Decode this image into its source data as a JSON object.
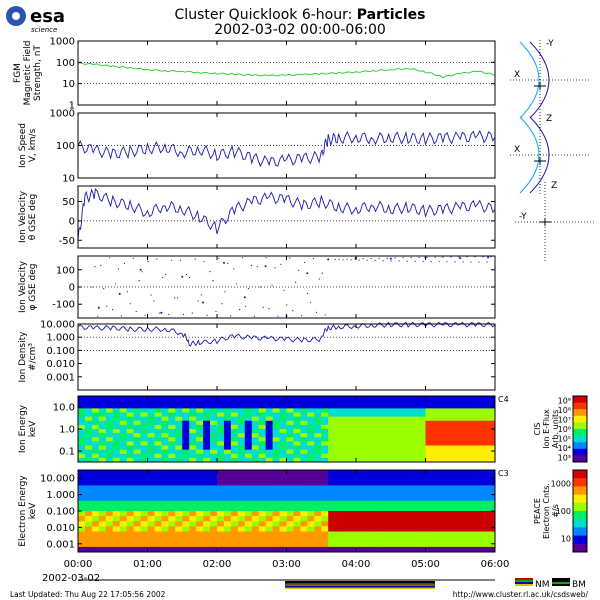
{
  "header": {
    "logo_text": "esa",
    "logo_sub": "science",
    "title_prefix": "Cluster Quicklook 6-hour: ",
    "title_bold": "Particles",
    "subtitle": "2002-03-02 00:00-06:00"
  },
  "footer": {
    "last_updated": "Last Updated:  Thu Aug 22 17:05:56 2002",
    "url": "http://www.cluster.rl.ac.uk/csdsweb/",
    "date": "2002-03-02",
    "nm_label": "NM",
    "bm_label": "BM"
  },
  "colors": {
    "fgm_line": "#22cc22",
    "ion_line": "#1a1aaa",
    "orbit_bow_shock": "#00aaff",
    "orbit_magnetopause": "#1a1aaa"
  },
  "chart_data": [
    {
      "type": "line",
      "panel": "fgm",
      "ylabel": [
        "FGM",
        "Magnetic  Field",
        "Strength, nT"
      ],
      "yscale": "log",
      "ylim": [
        1,
        1000
      ],
      "yticks": [
        "1000",
        "100",
        "10",
        "1"
      ],
      "x_hours": [
        0.0,
        0.25,
        0.5,
        0.75,
        1.0,
        1.25,
        1.5,
        1.75,
        2.0,
        2.25,
        2.5,
        2.75,
        3.0,
        3.25,
        3.5,
        3.75,
        4.0,
        4.25,
        4.5,
        4.75,
        5.0,
        5.25,
        5.5,
        5.75,
        6.0
      ],
      "values": [
        90,
        80,
        65,
        55,
        45,
        40,
        38,
        33,
        30,
        28,
        25,
        24,
        25,
        27,
        29,
        32,
        35,
        40,
        45,
        52,
        35,
        20,
        30,
        38,
        25
      ]
    },
    {
      "type": "line",
      "panel": "ion_speed",
      "ylabel": [
        "Ion Speed",
        "V, km/s"
      ],
      "yscale": "log",
      "ylim": [
        10,
        1000
      ],
      "yticks": [
        "1000",
        "100",
        "10"
      ],
      "x_hours": [
        0.0,
        0.25,
        0.5,
        0.75,
        1.0,
        1.25,
        1.5,
        1.75,
        2.0,
        2.25,
        2.5,
        2.75,
        3.0,
        3.25,
        3.5,
        3.6,
        3.75,
        4.0,
        4.25,
        4.5,
        4.75,
        5.0,
        5.25,
        5.5,
        5.75,
        6.0
      ],
      "values": [
        95,
        70,
        55,
        65,
        80,
        90,
        60,
        75,
        50,
        65,
        40,
        30,
        35,
        40,
        45,
        150,
        170,
        180,
        165,
        175,
        170,
        160,
        170,
        175,
        190,
        180
      ]
    },
    {
      "type": "line",
      "panel": "ion_theta",
      "ylabel": [
        "Ion Velocity",
        "θ GSE deg"
      ],
      "ylim": [
        -70,
        90
      ],
      "yticks": [
        "50",
        "0",
        "-50"
      ],
      "x_hours": [
        0.0,
        0.1,
        0.25,
        0.5,
        0.75,
        1.0,
        1.25,
        1.5,
        1.75,
        2.0,
        2.25,
        2.5,
        2.75,
        3.0,
        3.25,
        3.5,
        3.75,
        4.0,
        4.25,
        4.5,
        4.75,
        5.0,
        5.25,
        5.5,
        5.75,
        6.0
      ],
      "values": [
        -50,
        60,
        70,
        50,
        40,
        20,
        40,
        30,
        10,
        -20,
        30,
        50,
        60,
        55,
        40,
        50,
        35,
        30,
        40,
        30,
        35,
        25,
        30,
        35,
        40,
        30
      ]
    },
    {
      "type": "scatter",
      "panel": "ion_phi",
      "ylabel": [
        "Ion Velocity",
        "φ GSE deg"
      ],
      "ylim": [
        -180,
        180
      ],
      "yticks": [
        "100",
        "0",
        "-100"
      ],
      "x_hours": [
        0.3,
        0.6,
        0.9,
        1.2,
        1.5,
        1.8,
        2.1,
        2.4,
        2.7,
        3.0,
        3.3,
        3.6,
        4.0,
        4.5,
        5.0,
        5.5,
        5.9
      ],
      "values": [
        -120,
        -40,
        100,
        -150,
        60,
        -90,
        140,
        -60,
        120,
        -170,
        80,
        160,
        170,
        165,
        170,
        168,
        172
      ]
    },
    {
      "type": "line",
      "panel": "ion_density",
      "ylabel": [
        "Ion Density",
        "#/cm³"
      ],
      "yscale": "log",
      "ylim": [
        0.0001,
        10
      ],
      "yticks": [
        "10.000",
        "1.000",
        "0.100",
        "0.010",
        "0.001"
      ],
      "x_hours": [
        0.0,
        0.25,
        0.5,
        0.75,
        1.0,
        1.25,
        1.5,
        1.6,
        1.75,
        2.0,
        2.25,
        2.5,
        2.75,
        3.0,
        3.25,
        3.5,
        3.6,
        3.75,
        4.0,
        4.25,
        4.5,
        4.75,
        5.0,
        5.25,
        5.5,
        5.75,
        6.0
      ],
      "values": [
        6,
        5,
        5,
        4,
        4,
        4,
        1.8,
        0.3,
        0.4,
        0.5,
        1.2,
        0.9,
        0.8,
        0.7,
        0.6,
        0.7,
        5,
        6,
        7,
        8,
        9,
        9,
        9,
        9,
        9,
        9,
        9
      ]
    },
    {
      "type": "heatmap",
      "panel": "ion_spectrogram",
      "ylabel": [
        "Ion Energy",
        "keV"
      ],
      "yscale": "log",
      "yticks": [
        "10.0",
        "1.0",
        "0.1"
      ],
      "spacecraft_label": "C4",
      "colorbar": {
        "label": [
          "CIS",
          "Ion E-Flux",
          "Arb. units"
        ],
        "ticks": [
          "10⁹",
          "10⁸",
          "10⁷",
          "10⁶",
          "10⁵",
          "10⁴",
          "10³"
        ],
        "colors": [
          "#cc0000",
          "#ff3300",
          "#ff9900",
          "#ffee00",
          "#99ff00",
          "#00ee66",
          "#00ddcc",
          "#0088ff",
          "#0000dd",
          "#550099"
        ]
      }
    },
    {
      "type": "heatmap",
      "panel": "electron_spectrogram",
      "ylabel": [
        "Electron Energy",
        "keV"
      ],
      "yscale": "log",
      "yticks": [
        "10.000",
        "1.000",
        "0.100",
        "0.010",
        "0.001"
      ],
      "spacecraft_label": "C3",
      "colorbar": {
        "label": [
          "PEACE",
          "Electron Cnts.",
          "#/s"
        ],
        "ticks": [
          "1000",
          "100",
          "10"
        ],
        "colors": [
          "#cc0000",
          "#ff3300",
          "#ff9900",
          "#ffee00",
          "#99ff00",
          "#00ee66",
          "#00ddcc",
          "#0088ff",
          "#0000dd",
          "#550099"
        ]
      }
    }
  ],
  "x_axis": {
    "ticks": [
      "00:00",
      "01:00",
      "02:00",
      "03:00",
      "04:00",
      "05:00",
      "06:00"
    ]
  },
  "orbit": {
    "view1": {
      "h_label": "X",
      "v_label": "-Y"
    },
    "view2": {
      "h_label": "X",
      "v_label": "Z"
    },
    "view3": {
      "h_label": "-Y",
      "v_label": "Z"
    }
  }
}
